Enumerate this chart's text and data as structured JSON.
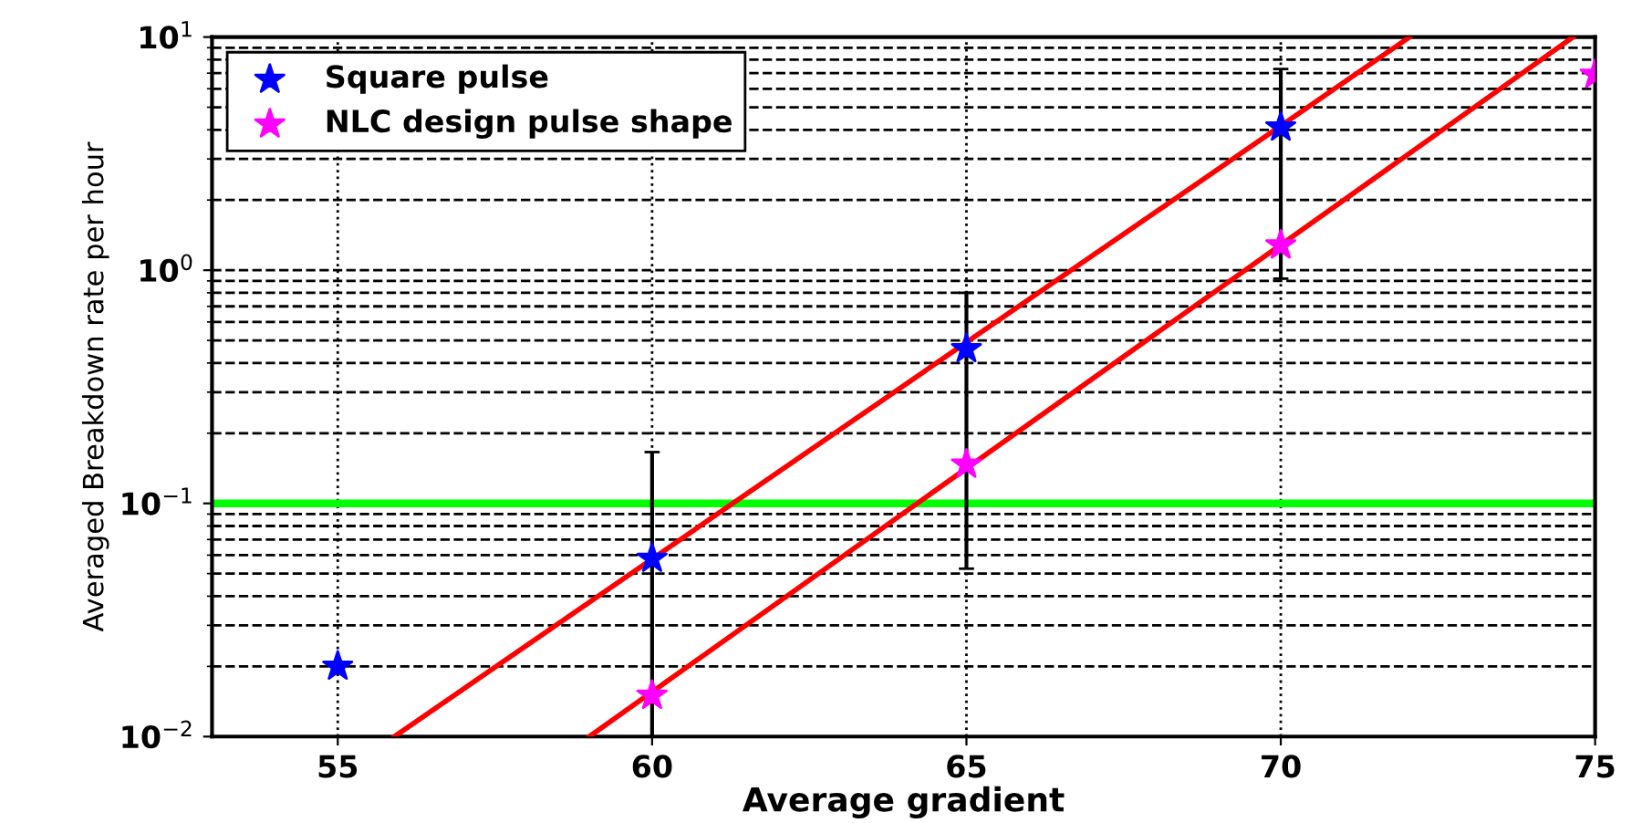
{
  "chart_data": {
    "type": "scatter",
    "xlabel": "Average gradient",
    "ylabel": "Averaged Breakdown rate per hour",
    "log": "y",
    "xlim": [
      53,
      75
    ],
    "ylim": [
      0.01,
      10
    ],
    "xticks": [
      55,
      60,
      65,
      70,
      75
    ],
    "yticks": [
      {
        "value": 0.01,
        "label": "10$^{−2}$"
      },
      {
        "value": 0.1,
        "label": "10$^{−1}$"
      },
      {
        "value": 1,
        "label": "10$^{0}$"
      },
      {
        "value": 10,
        "label": "10$^{1}$"
      }
    ],
    "grid": true,
    "legend": "top left",
    "series": [
      {
        "name": "Square pulse",
        "color": "#0000ff",
        "marker": "star",
        "x": [
          55,
          60,
          65,
          70
        ],
        "values": [
          0.02,
          0.058,
          0.46,
          4.1
        ],
        "errors": [
          null,
          [
            0.01,
            0.166
          ],
          [
            0.0525,
            0.8
          ],
          [
            0.92,
            7.3
          ]
        ]
      },
      {
        "name": "NLC design pulse shape",
        "color": "#ff00ff",
        "marker": "star",
        "x": [
          60,
          65,
          70,
          75
        ],
        "values": [
          0.015,
          0.147,
          1.28,
          6.9
        ]
      },
      {
        "type": "line",
        "color": "#ff0000",
        "x": [
          55.9,
          72.05
        ],
        "values": [
          0.01,
          10
        ]
      },
      {
        "type": "line",
        "color": "#ff0000",
        "x": [
          59.0,
          74.65
        ],
        "values": [
          0.01,
          10
        ]
      }
    ],
    "ref_lines": [
      {
        "axis": "y",
        "value": 0.1,
        "color": "#00ff00"
      }
    ]
  }
}
